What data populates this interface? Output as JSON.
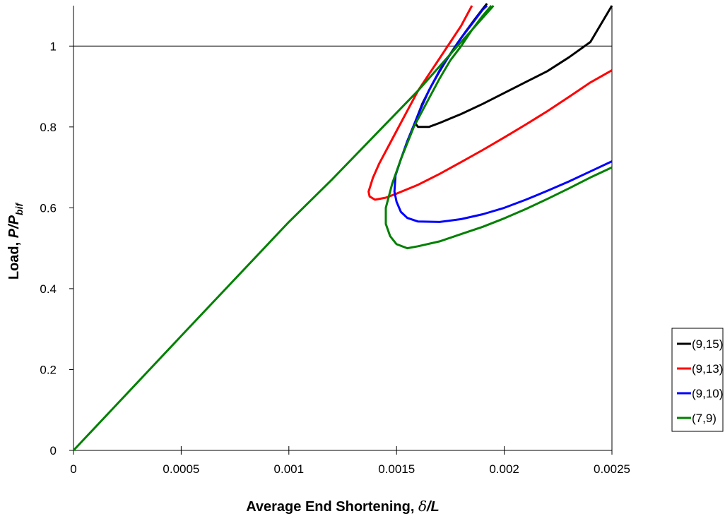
{
  "chart_data": {
    "type": "line",
    "xlabel": {
      "text": "Average End Shortening, ",
      "sym": "δ",
      "suffix": "/L"
    },
    "ylabel": {
      "text": "Load, ",
      "var": "P/P",
      "sub": "bif"
    },
    "xlim": [
      0,
      0.0025
    ],
    "ylim": [
      0,
      1.1
    ],
    "xticks": [
      0,
      0.0005,
      0.001,
      0.0015,
      0.002,
      0.0025
    ],
    "xtick_labels": [
      "0",
      "0.0005",
      "0.001",
      "0.0015",
      "0.002",
      "0.0025"
    ],
    "yticks": [
      0,
      0.2,
      0.4,
      0.6,
      0.8,
      1
    ],
    "ytick_labels": [
      "0",
      "0.2",
      "0.4",
      "0.6",
      "0.8",
      "1"
    ],
    "reference_line_y": 1,
    "grid": false,
    "legend_position": "right",
    "series": [
      {
        "name": "(9,15)",
        "color": "#000000",
        "points": [
          [
            0.001585,
            0.81
          ],
          [
            0.00162,
            0.858
          ],
          [
            0.00166,
            0.9
          ],
          [
            0.0017,
            0.938
          ],
          [
            0.00174,
            0.973
          ],
          [
            0.00178,
            1.005
          ],
          [
            0.00182,
            1.035
          ],
          [
            0.00186,
            1.064
          ],
          [
            0.0019,
            1.092
          ],
          [
            0.00192,
            1.105
          ],
          [
            null,
            null
          ],
          [
            0.001585,
            0.81
          ],
          [
            0.0016,
            0.8
          ],
          [
            0.00165,
            0.8
          ],
          [
            0.0017,
            0.81
          ],
          [
            0.0018,
            0.832
          ],
          [
            0.0019,
            0.857
          ],
          [
            0.002,
            0.884
          ],
          [
            0.0021,
            0.911
          ],
          [
            0.0022,
            0.938
          ],
          [
            0.0023,
            0.972
          ],
          [
            0.0024,
            1.01
          ],
          [
            0.0025,
            1.1
          ]
        ]
      },
      {
        "name": "(9,13)",
        "color": "#ff0000",
        "points": [
          [
            0.0025,
            0.94
          ],
          [
            0.0024,
            0.91
          ],
          [
            0.0023,
            0.874
          ],
          [
            0.0022,
            0.839
          ],
          [
            0.0021,
            0.806
          ],
          [
            0.002,
            0.774
          ],
          [
            0.0019,
            0.743
          ],
          [
            0.0018,
            0.713
          ],
          [
            0.0017,
            0.684
          ],
          [
            0.0016,
            0.657
          ],
          [
            0.0015,
            0.635
          ],
          [
            0.00145,
            0.625
          ],
          [
            0.0014,
            0.62
          ],
          [
            0.001375,
            0.628
          ],
          [
            0.00137,
            0.64
          ],
          [
            0.00139,
            0.674
          ],
          [
            0.00142,
            0.71
          ],
          [
            0.00146,
            0.75
          ],
          [
            0.0015,
            0.79
          ],
          [
            0.00155,
            0.84
          ],
          [
            0.0016,
            0.89
          ],
          [
            0.00165,
            0.93
          ],
          [
            0.0017,
            0.97
          ],
          [
            0.00175,
            1.01
          ],
          [
            0.0018,
            1.05
          ],
          [
            0.00185,
            1.1
          ]
        ]
      },
      {
        "name": "(9,10)",
        "color": "#0000ff",
        "points": [
          [
            0.0025,
            0.715
          ],
          [
            0.0024,
            0.69
          ],
          [
            0.0023,
            0.665
          ],
          [
            0.0022,
            0.642
          ],
          [
            0.0021,
            0.62
          ],
          [
            0.002,
            0.6
          ],
          [
            0.0019,
            0.584
          ],
          [
            0.0018,
            0.572
          ],
          [
            0.0017,
            0.565
          ],
          [
            0.0016,
            0.566
          ],
          [
            0.00155,
            0.575
          ],
          [
            0.00152,
            0.59
          ],
          [
            0.0015,
            0.615
          ],
          [
            0.00149,
            0.64
          ],
          [
            0.001495,
            0.68
          ],
          [
            0.00152,
            0.72
          ],
          [
            0.00155,
            0.765
          ],
          [
            0.0016,
            0.83
          ],
          [
            0.00165,
            0.89
          ],
          [
            0.0017,
            0.94
          ],
          [
            0.00175,
            0.98
          ],
          [
            0.0018,
            1.02
          ],
          [
            0.00185,
            1.055
          ],
          [
            0.0019,
            1.09
          ],
          [
            0.00192,
            1.1
          ]
        ]
      },
      {
        "name": "(7,9)",
        "color": "#008000",
        "points": [
          [
            0,
            0
          ],
          [
            0.0005,
            0.283
          ],
          [
            0.001,
            0.565
          ],
          [
            0.0012,
            0.67
          ],
          [
            0.0014,
            0.78
          ],
          [
            0.0016,
            0.89
          ],
          [
            0.0017,
            0.95
          ],
          [
            0.0018,
            1.01
          ],
          [
            0.00185,
            1.04
          ],
          [
            0.0019,
            1.075
          ],
          [
            0.00194,
            1.1
          ],
          [
            null,
            null
          ],
          [
            0.0025,
            0.7
          ],
          [
            0.0024,
            0.675
          ],
          [
            0.0023,
            0.648
          ],
          [
            0.0022,
            0.622
          ],
          [
            0.0021,
            0.597
          ],
          [
            0.002,
            0.574
          ],
          [
            0.0019,
            0.553
          ],
          [
            0.0018,
            0.535
          ],
          [
            0.0017,
            0.517
          ],
          [
            0.0016,
            0.505
          ],
          [
            0.00155,
            0.5
          ],
          [
            0.0015,
            0.51
          ],
          [
            0.00147,
            0.53
          ],
          [
            0.00145,
            0.56
          ],
          [
            0.00145,
            0.6
          ],
          [
            0.00148,
            0.66
          ],
          [
            0.00152,
            0.72
          ],
          [
            0.00158,
            0.8
          ],
          [
            0.00165,
            0.87
          ],
          [
            0.0017,
            0.92
          ],
          [
            0.00175,
            0.965
          ],
          [
            0.0018,
            1.0
          ],
          [
            0.00185,
            1.04
          ],
          [
            0.0019,
            1.07
          ],
          [
            0.00195,
            1.1
          ]
        ]
      }
    ]
  }
}
